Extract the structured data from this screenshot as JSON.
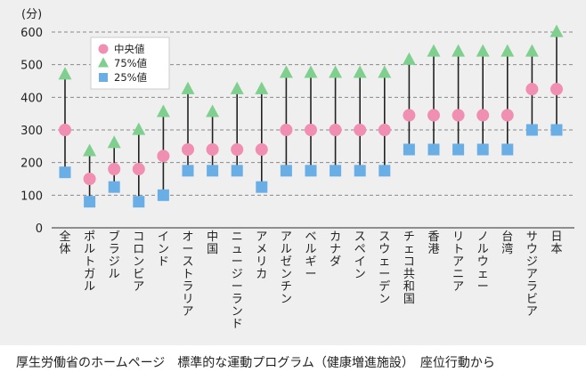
{
  "chart_data": {
    "type": "scatter",
    "unit_label": "(分)",
    "ylim": [
      0,
      600
    ],
    "yticks": [
      0,
      100,
      200,
      300,
      400,
      500,
      600
    ],
    "grid": true,
    "legend_position": "top-left",
    "categories": [
      "全体",
      "ポルトガル",
      "ブラジル",
      "コロンビア",
      "インド",
      "オーストラリア",
      "中国",
      "ニュージーランド",
      "アメリカ",
      "アルゼンチン",
      "ベルギー",
      "カナダ",
      "スペイン",
      "スウェーデン",
      "チェコ共和国",
      "香港",
      "リトアニア",
      "ノルウェー",
      "台湾",
      "サウジアラビア",
      "日本"
    ],
    "series": [
      {
        "name": "中央値",
        "marker": "circle",
        "color": "#f08fb2",
        "values": [
          300,
          150,
          180,
          180,
          220,
          240,
          240,
          240,
          240,
          300,
          300,
          300,
          300,
          300,
          345,
          345,
          345,
          345,
          345,
          425,
          425
        ]
      },
      {
        "name": "75%値",
        "marker": "triangle",
        "color": "#7fd08f",
        "values": [
          470,
          235,
          260,
          300,
          355,
          425,
          355,
          425,
          425,
          475,
          475,
          475,
          475,
          475,
          515,
          540,
          540,
          540,
          540,
          540,
          600
        ]
      },
      {
        "name": "25%値",
        "marker": "square",
        "color": "#6aaee6",
        "values": [
          170,
          80,
          125,
          80,
          100,
          175,
          175,
          175,
          125,
          175,
          175,
          175,
          175,
          175,
          240,
          240,
          240,
          240,
          240,
          300,
          300
        ]
      }
    ]
  },
  "caption": "厚生労働省のホームページ　標準的な運動プログラム（健康増進施設）　座位行動から"
}
